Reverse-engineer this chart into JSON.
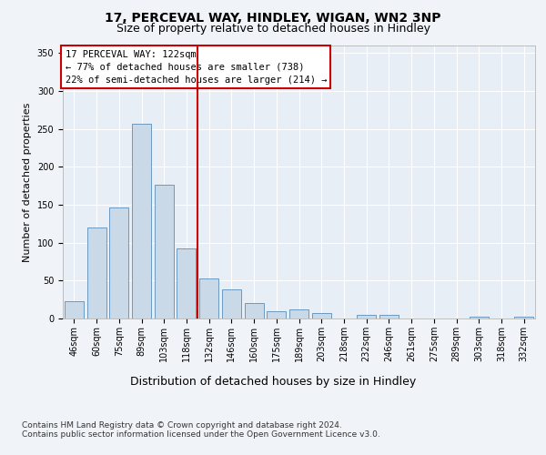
{
  "title1": "17, PERCEVAL WAY, HINDLEY, WIGAN, WN2 3NP",
  "title2": "Size of property relative to detached houses in Hindley",
  "xlabel": "Distribution of detached houses by size in Hindley",
  "ylabel": "Number of detached properties",
  "categories": [
    "46sqm",
    "60sqm",
    "75sqm",
    "89sqm",
    "103sqm",
    "118sqm",
    "132sqm",
    "146sqm",
    "160sqm",
    "175sqm",
    "189sqm",
    "203sqm",
    "218sqm",
    "232sqm",
    "246sqm",
    "261sqm",
    "275sqm",
    "289sqm",
    "303sqm",
    "318sqm",
    "332sqm"
  ],
  "values": [
    23,
    120,
    147,
    257,
    176,
    93,
    53,
    39,
    20,
    10,
    12,
    7,
    0,
    5,
    5,
    0,
    0,
    0,
    2,
    0,
    2
  ],
  "bar_color": "#c9d9e8",
  "bar_edge_color": "#5b8db8",
  "vline_x": 5.5,
  "vline_color": "#cc0000",
  "annotation_text": "17 PERCEVAL WAY: 122sqm\n← 77% of detached houses are smaller (738)\n22% of semi-detached houses are larger (214) →",
  "annotation_box_color": "#ffffff",
  "annotation_box_edge": "#cc0000",
  "ylim": [
    0,
    360
  ],
  "yticks": [
    0,
    50,
    100,
    150,
    200,
    250,
    300,
    350
  ],
  "footer": "Contains HM Land Registry data © Crown copyright and database right 2024.\nContains public sector information licensed under the Open Government Licence v3.0.",
  "bg_color": "#f0f4f8",
  "plot_bg_color": "#e8eef5",
  "grid_color": "#ffffff",
  "title1_fontsize": 10,
  "title2_fontsize": 9,
  "xlabel_fontsize": 9,
  "ylabel_fontsize": 8,
  "tick_fontsize": 7,
  "annotation_fontsize": 7.5,
  "footer_fontsize": 6.5
}
